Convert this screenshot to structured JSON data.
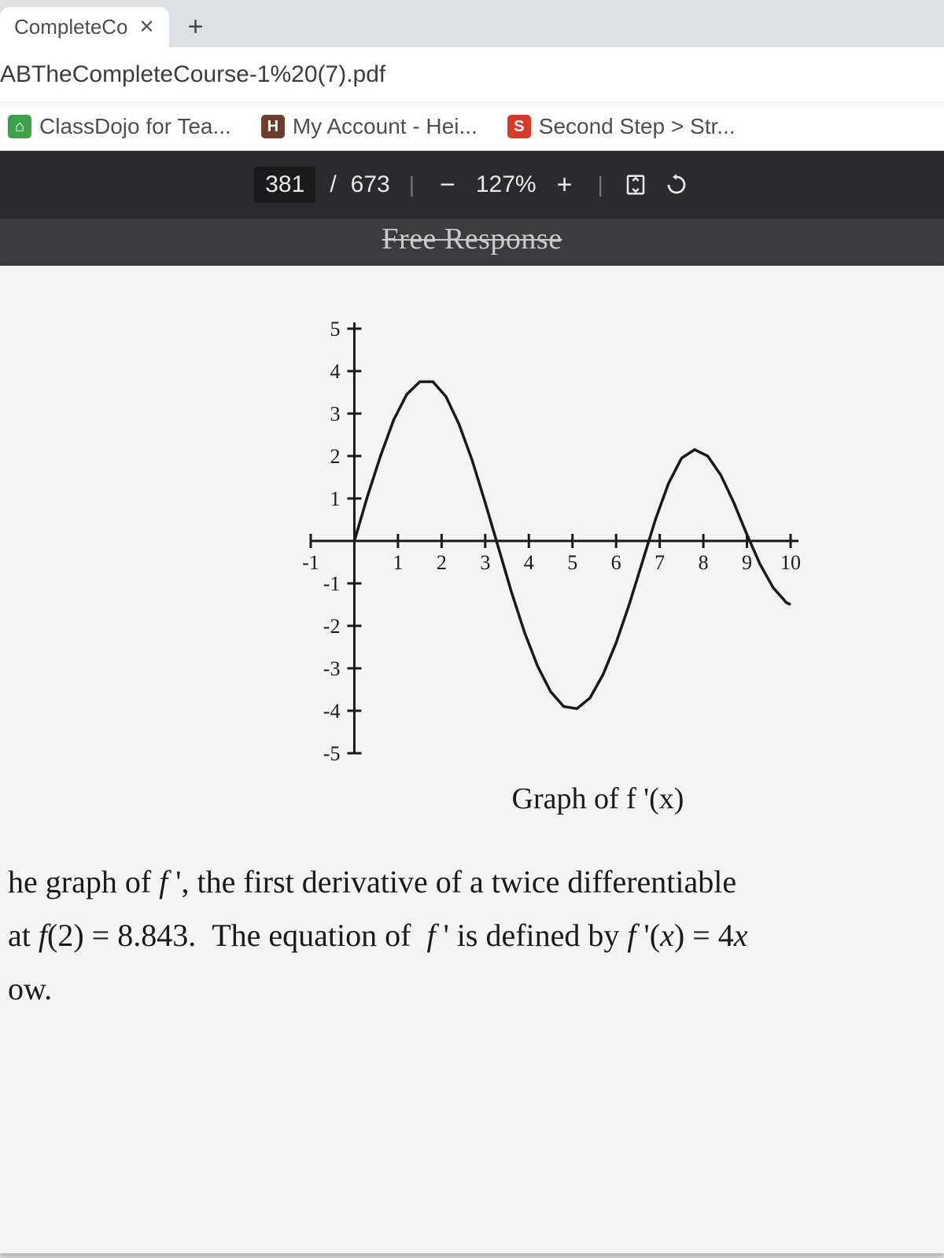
{
  "browser": {
    "tab_title": "CompleteCo",
    "url_text": "ABTheCompleteCourse-1%20(7).pdf",
    "bookmarks": [
      {
        "label": "ClassDojo for Tea...",
        "favicon_color": "#3fa24a",
        "favicon_glyph": "⌂"
      },
      {
        "label": "My Account - Hei...",
        "favicon_color": "#6b3f2a",
        "favicon_glyph": "H"
      },
      {
        "label": "Second Step > Str...",
        "favicon_color": "#d9392b",
        "favicon_glyph": "S"
      }
    ]
  },
  "pdf_toolbar": {
    "page_current": "381",
    "page_total": "673",
    "page_sep": "/",
    "zoom_value": "127%",
    "minus": "−",
    "plus": "+"
  },
  "document": {
    "section_header": "Free Response",
    "chart": {
      "type": "line",
      "caption": "Graph of f '(x)",
      "xlim": [
        -1,
        10
      ],
      "ylim": [
        -5,
        5
      ],
      "xtick_step": 1,
      "ytick_step": 1,
      "x_ticks": [
        -1,
        1,
        2,
        3,
        4,
        5,
        6,
        7,
        8,
        9,
        10
      ],
      "y_ticks": [
        5,
        4,
        3,
        2,
        1,
        -1,
        -2,
        -3,
        -4,
        -5
      ],
      "axis_color": "#1a1a1a",
      "curve_color": "#1a1a1a",
      "background_color": "#f3f4f5",
      "line_width": 3.5,
      "tick_fontsize": 26,
      "caption_fontsize": 38,
      "curve_points": [
        [
          0,
          0
        ],
        [
          0.3,
          1.05
        ],
        [
          0.6,
          2.0
        ],
        [
          0.9,
          2.85
        ],
        [
          1.2,
          3.45
        ],
        [
          1.5,
          3.75
        ],
        [
          1.8,
          3.75
        ],
        [
          2.1,
          3.4
        ],
        [
          2.4,
          2.75
        ],
        [
          2.7,
          1.9
        ],
        [
          3.0,
          0.9
        ],
        [
          3.3,
          -0.15
        ],
        [
          3.6,
          -1.2
        ],
        [
          3.9,
          -2.15
        ],
        [
          4.2,
          -2.95
        ],
        [
          4.5,
          -3.55
        ],
        [
          4.8,
          -3.9
        ],
        [
          5.1,
          -3.95
        ],
        [
          5.4,
          -3.7
        ],
        [
          5.7,
          -3.15
        ],
        [
          6.0,
          -2.4
        ],
        [
          6.3,
          -1.5
        ],
        [
          6.6,
          -0.5
        ],
        [
          6.9,
          0.5
        ],
        [
          7.2,
          1.35
        ],
        [
          7.5,
          1.95
        ],
        [
          7.8,
          2.15
        ],
        [
          8.1,
          2.0
        ],
        [
          8.4,
          1.55
        ],
        [
          8.7,
          0.9
        ],
        [
          9.0,
          0.15
        ],
        [
          9.3,
          -0.55
        ],
        [
          9.6,
          -1.1
        ],
        [
          9.9,
          -1.45
        ],
        [
          10.0,
          -1.5
        ]
      ]
    },
    "body_lines": [
      "he graph of f ', the first derivative of a twice differentiable",
      "at f(2) = 8.843.  The equation of  f ' is defined by f '(x) = 4x",
      "ow."
    ]
  },
  "colors": {
    "tab_bg": "#dcdfe3",
    "page_bg": "#f3f4f5",
    "doc_bg": "#4a4c4f",
    "toolbar_bg": "#2a2b2e",
    "toolbar_fg": "#e9e9ea"
  }
}
